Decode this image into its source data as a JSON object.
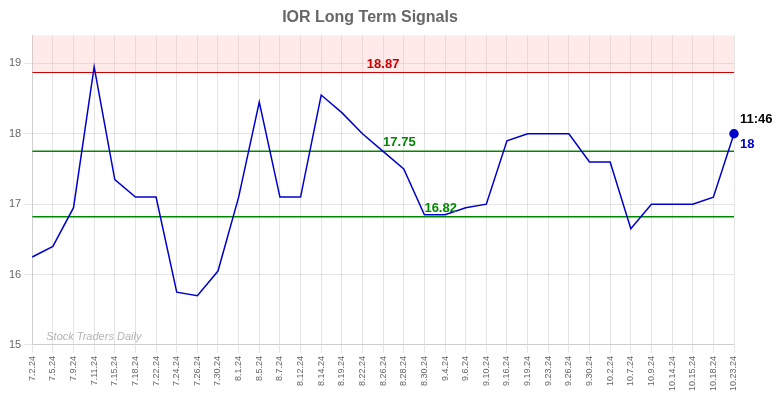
{
  "chart_data": {
    "type": "line",
    "title": "IOR Long Term Signals",
    "categories": [
      "7.2.24",
      "7.5.24",
      "7.9.24",
      "7.11.24",
      "7.15.24",
      "7.18.24",
      "7.22.24",
      "7.24.24",
      "7.26.24",
      "7.30.24",
      "8.1.24",
      "8.5.24",
      "8.7.24",
      "8.12.24",
      "8.14.24",
      "8.19.24",
      "8.22.24",
      "8.26.24",
      "8.28.24",
      "8.30.24",
      "9.4.24",
      "9.6.24",
      "9.10.24",
      "9.16.24",
      "9.19.24",
      "9.23.24",
      "9.26.24",
      "9.30.24",
      "10.2.24",
      "10.7.24",
      "10.9.24",
      "10.14.24",
      "10.15.24",
      "10.18.24",
      "10.23.24"
    ],
    "values": [
      16.25,
      16.4,
      16.95,
      18.95,
      17.35,
      17.1,
      17.1,
      15.75,
      15.7,
      16.05,
      17.1,
      18.45,
      17.1,
      17.1,
      18.55,
      18.3,
      18.0,
      17.75,
      17.5,
      16.85,
      16.85,
      16.95,
      17.0,
      17.9,
      18.0,
      18.0,
      18.0,
      17.6,
      17.6,
      16.65,
      17.0,
      17.0,
      17.0,
      17.1,
      18.0
    ],
    "color": "#0000cc",
    "ylim": [
      15.0,
      19.4
    ],
    "yticks": [
      15,
      16,
      17,
      18,
      19
    ],
    "grid": true,
    "hlines": [
      {
        "value": 18.87,
        "color": "#cc0000"
      },
      {
        "value": 17.75,
        "color": "#008800"
      },
      {
        "value": 16.82,
        "color": "#008800"
      }
    ],
    "band": {
      "from": 18.87,
      "to": 19.4,
      "color": "#ffaaaa"
    },
    "last_point": {
      "time": "11:46",
      "price": 18
    },
    "watermark": "Stock Traders Daily"
  }
}
